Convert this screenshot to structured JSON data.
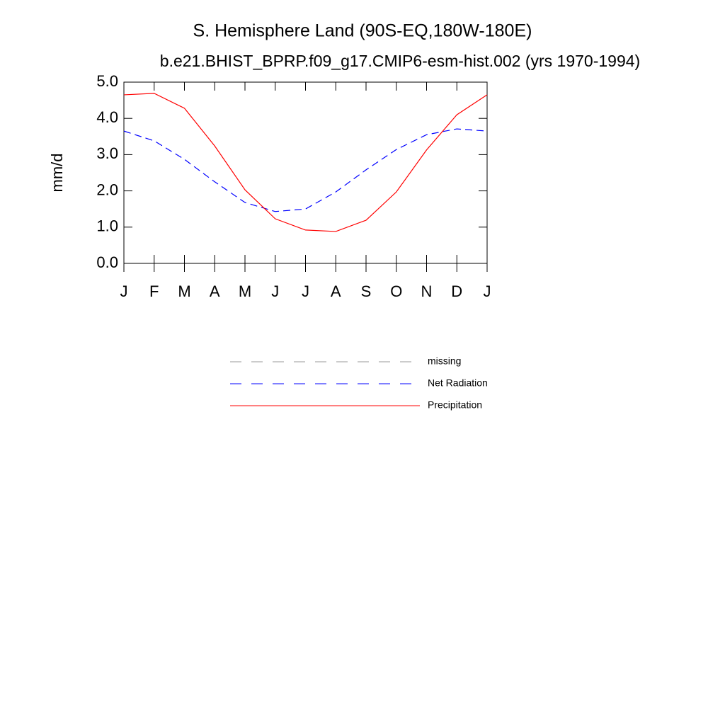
{
  "chart_data": {
    "type": "line",
    "title": "S. Hemisphere Land (90S-EQ,180W-180E)",
    "subtitle": "b.e21.BHIST_BPRP.f09_g17.CMIP6-esm-hist.002 (yrs 1970-1994)",
    "y_label": "mm/d",
    "categories": [
      "J",
      "F",
      "M",
      "A",
      "M",
      "J",
      "J",
      "A",
      "S",
      "O",
      "N",
      "D",
      "J"
    ],
    "series": [
      {
        "name": "missing",
        "color": "#999999",
        "dashed": true,
        "values": [
          null,
          null,
          null,
          null,
          null,
          null,
          null,
          null,
          null,
          null,
          null,
          null,
          null
        ]
      },
      {
        "name": "Net Radiation",
        "color": "#0000ff",
        "dashed": true,
        "values": [
          3.65,
          3.38,
          2.87,
          2.25,
          1.68,
          1.43,
          1.5,
          1.97,
          2.58,
          3.14,
          3.55,
          3.71,
          3.65
        ]
      },
      {
        "name": "Precipitation",
        "color": "#ff0000",
        "dashed": false,
        "values": [
          4.65,
          4.69,
          4.28,
          3.24,
          2.03,
          1.23,
          0.92,
          0.88,
          1.19,
          1.97,
          3.13,
          4.1,
          4.65
        ]
      }
    ],
    "ylim": [
      0,
      5
    ],
    "yticks": [
      {
        "value": 0,
        "label": "0.0"
      },
      {
        "value": 1,
        "label": "1.0"
      },
      {
        "value": 2,
        "label": "2.0"
      },
      {
        "value": 3,
        "label": "3.0"
      },
      {
        "value": 4,
        "label": "4.0"
      },
      {
        "value": 5,
        "label": "5.0"
      }
    ],
    "grid": false
  }
}
